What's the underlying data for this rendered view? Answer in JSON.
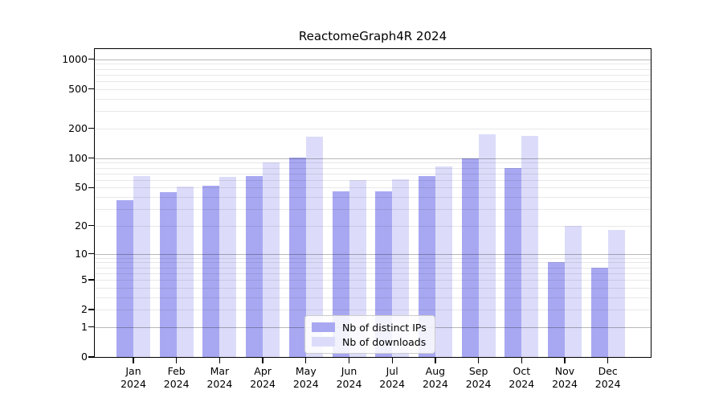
{
  "chart_data": {
    "type": "bar",
    "title": "ReactomeGraph4R 2024",
    "categories": [
      "Jan",
      "Feb",
      "Mar",
      "Apr",
      "May",
      "Jun",
      "Jul",
      "Aug",
      "Sep",
      "Oct",
      "Nov",
      "Dec"
    ],
    "x_year_label": "2024",
    "series": [
      {
        "name": "Nb of distinct IPs",
        "color": "#a8a8f2",
        "values": [
          37,
          45,
          52,
          66,
          101,
          46,
          46,
          66,
          100,
          79,
          8,
          7
        ]
      },
      {
        "name": "Nb of downloads",
        "color": "#dcdcfa",
        "values": [
          66,
          51,
          64,
          91,
          165,
          60,
          61,
          83,
          175,
          167,
          20,
          18
        ]
      }
    ],
    "y_ticks": [
      0,
      1,
      2,
      5,
      10,
      20,
      50,
      100,
      200,
      500,
      1000
    ],
    "ylim": [
      0,
      1270
    ],
    "scale": "log1p",
    "grid": true,
    "legend_position": "bottom-center",
    "xlabel": "",
    "ylabel": ""
  }
}
